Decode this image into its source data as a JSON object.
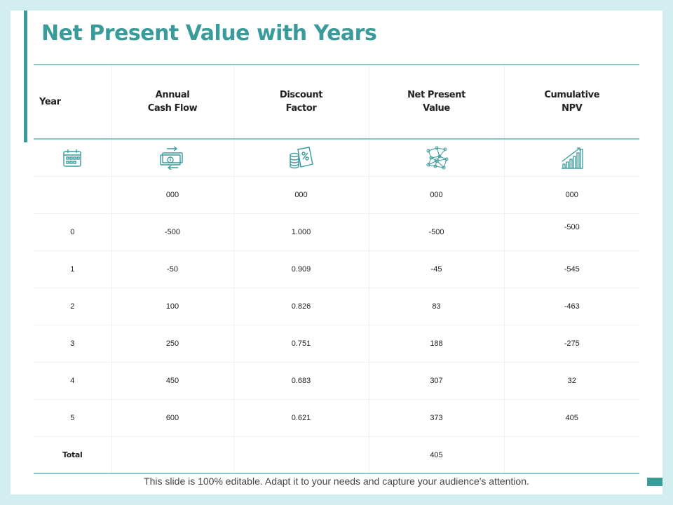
{
  "slide": {
    "title": "Net Present Value with Years",
    "footer": "This slide is 100% editable. Adapt it to your needs and capture your audience's attention."
  },
  "colors": {
    "accent": "#3a9b9b",
    "background": "#d3eef1",
    "rule": "#86c7c7"
  },
  "table": {
    "headers": [
      {
        "line1": "Year",
        "line2": ""
      },
      {
        "line1": "Annual",
        "line2": "Cash Flow"
      },
      {
        "line1": "Discount",
        "line2": "Factor"
      },
      {
        "line1": "Net Present",
        "line2": "Value"
      },
      {
        "line1": "Cumulative",
        "line2": "NPV"
      }
    ],
    "icons": [
      "calendar-icon",
      "cash-flow-icon",
      "discount-coins-icon",
      "network-icon",
      "growth-bars-icon"
    ],
    "units_row": [
      "",
      "000",
      "000",
      "000",
      "000"
    ],
    "rows": [
      {
        "year": "0",
        "cash_flow": "-500",
        "discount_factor": "1.000",
        "npv": "-500",
        "cumulative": "-500"
      },
      {
        "year": "1",
        "cash_flow": "-50",
        "discount_factor": "0.909",
        "npv": "-45",
        "cumulative": "-545"
      },
      {
        "year": "2",
        "cash_flow": "100",
        "discount_factor": "0.826",
        "npv": "83",
        "cumulative": "-463"
      },
      {
        "year": "3",
        "cash_flow": "250",
        "discount_factor": "0.751",
        "npv": "188",
        "cumulative": "-275"
      },
      {
        "year": "4",
        "cash_flow": "450",
        "discount_factor": "0.683",
        "npv": "307",
        "cumulative": "32"
      },
      {
        "year": "5",
        "cash_flow": "600",
        "discount_factor": "0.621",
        "npv": "373",
        "cumulative": "405"
      }
    ],
    "total": {
      "label": "Total",
      "npv": "405"
    }
  }
}
